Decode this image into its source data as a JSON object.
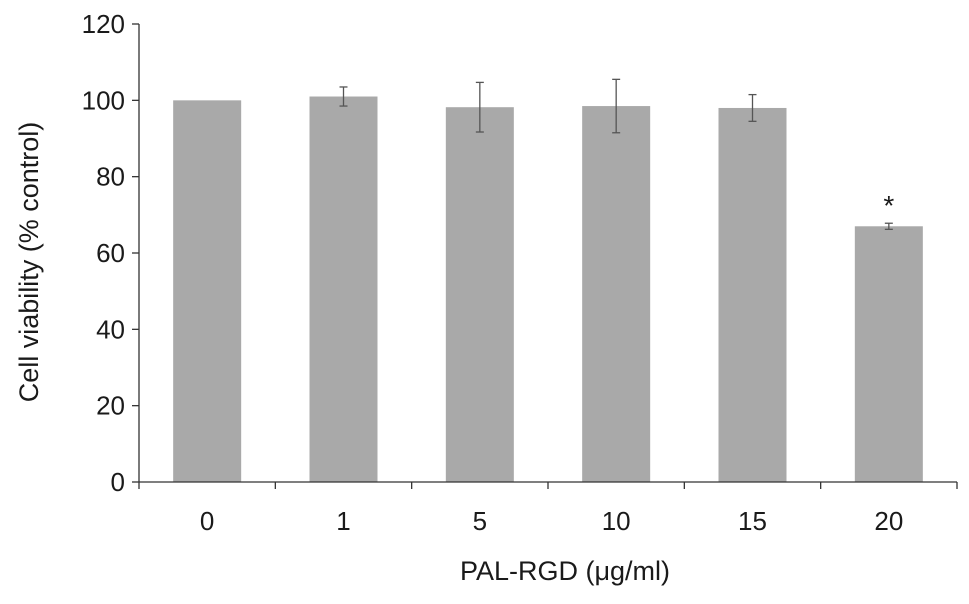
{
  "chart_data": {
    "type": "bar",
    "title": "",
    "xlabel": "PAL-RGD (μg/ml)",
    "ylabel": "Cell viability (% control)",
    "categories": [
      "0",
      "1",
      "5",
      "10",
      "15",
      "20"
    ],
    "values": [
      100,
      101,
      98.2,
      98.5,
      98,
      67
    ],
    "errors": [
      0,
      2.5,
      6.5,
      7,
      3.5,
      0.8
    ],
    "annotations": [
      "",
      "",
      "",
      "",
      "",
      "*"
    ],
    "ylim": [
      0,
      120
    ],
    "yticks": [
      "0",
      "20",
      "40",
      "60",
      "80",
      "100",
      "120"
    ],
    "grid": false,
    "legend": "none",
    "bar_color": "#a9a9a9",
    "error_color": "#555555"
  }
}
